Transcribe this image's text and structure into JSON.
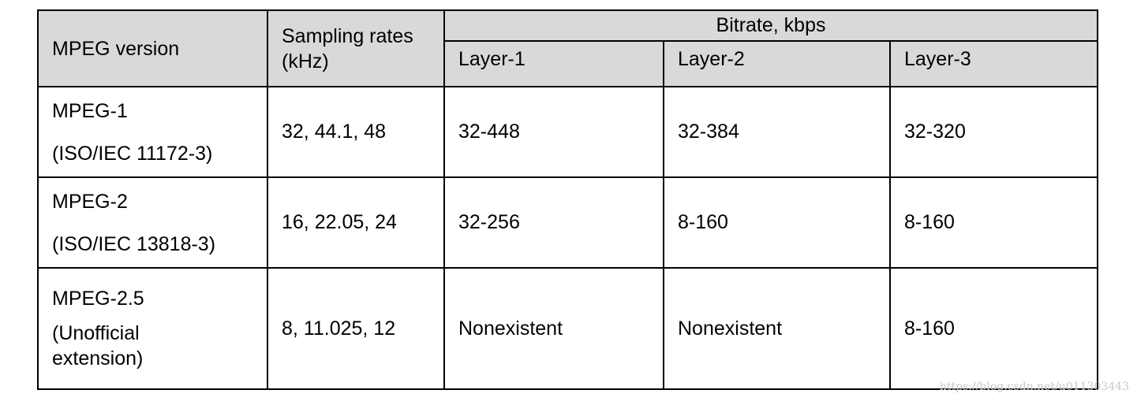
{
  "table": {
    "header": {
      "version": "MPEG version",
      "sampling": [
        "Sampling rates",
        "(kHz)"
      ],
      "bitrate": "Bitrate, kbps",
      "layers": [
        "Layer-1",
        "Layer-2",
        "Layer-3"
      ]
    },
    "rows": [
      {
        "version": [
          "MPEG-1",
          "(ISO/IEC 11172-3)"
        ],
        "sampling": "32, 44.1, 48",
        "layers": [
          "32-448",
          "32-384",
          "32-320"
        ]
      },
      {
        "version": [
          "MPEG-2",
          "(ISO/IEC 13818-3)"
        ],
        "sampling": "16, 22.05, 24",
        "layers": [
          "32-256",
          "8-160",
          "8-160"
        ]
      },
      {
        "version": [
          "MPEG-2.5",
          "(Unofficial",
          "extension)"
        ],
        "sampling": "8, 11.025, 12",
        "layers": [
          "Nonexistent",
          "Nonexistent",
          "8-160"
        ]
      }
    ]
  },
  "watermark": "https://blog.csdn.net/u011303443"
}
